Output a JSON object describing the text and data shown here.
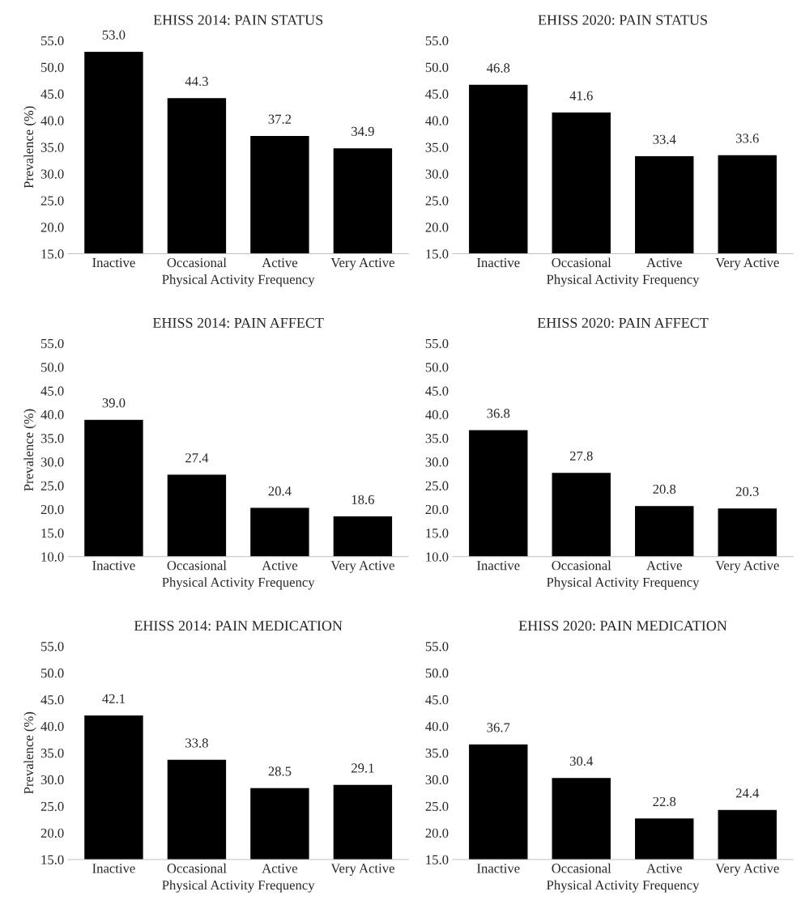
{
  "chart_data": [
    {
      "type": "bar",
      "title": "EHISS 2014: PAIN STATUS",
      "xlabel": "Physical Activity Frequency",
      "ylabel": "Prevalence (%)",
      "categories": [
        "Inactive",
        "Occasional",
        "Active",
        "Very Active"
      ],
      "values": [
        53.0,
        44.3,
        37.2,
        34.9
      ],
      "color": "#000000",
      "ylim": [
        15,
        55
      ],
      "yticks": [
        {
          "value": 15,
          "label": "15.0"
        },
        {
          "value": 20,
          "label": "20.0"
        },
        {
          "value": 25,
          "label": "25.0"
        },
        {
          "value": 30,
          "label": "30.0"
        },
        {
          "value": 35,
          "label": "35.0"
        },
        {
          "value": 40,
          "label": "40.0"
        },
        {
          "value": 45,
          "label": "45.0"
        },
        {
          "value": 50,
          "label": "50.0"
        },
        {
          "value": 55,
          "label": "55.0"
        }
      ],
      "value_labels": [
        "53.0",
        "44.3",
        "37.2",
        "34.9"
      ],
      "grid": false
    },
    {
      "type": "bar",
      "title": "EHISS 2020: PAIN STATUS",
      "xlabel": "Physical Activity Frequency",
      "categories": [
        "Inactive",
        "Occasional",
        "Active",
        "Very Active"
      ],
      "values": [
        46.8,
        41.6,
        33.4,
        33.6
      ],
      "color": "#000000",
      "ylim": [
        15,
        55
      ],
      "yticks": [
        {
          "value": 15,
          "label": "15.0"
        },
        {
          "value": 20,
          "label": "20.0"
        },
        {
          "value": 25,
          "label": "25.0"
        },
        {
          "value": 30,
          "label": "30.0"
        },
        {
          "value": 35,
          "label": "35.0"
        },
        {
          "value": 40,
          "label": "40.0"
        },
        {
          "value": 45,
          "label": "45.0"
        },
        {
          "value": 50,
          "label": "50.0"
        },
        {
          "value": 55,
          "label": "55.0"
        }
      ],
      "value_labels": [
        "46.8",
        "41.6",
        "33.4",
        "33.6"
      ],
      "grid": false
    },
    {
      "type": "bar",
      "title": "EHISS 2014: PAIN AFFECT",
      "xlabel": "Physical Activity Frequency",
      "ylabel": "Prevalence (%)",
      "categories": [
        "Inactive",
        "Occasional",
        "Active",
        "Very Active"
      ],
      "values": [
        39.0,
        27.4,
        20.4,
        18.6
      ],
      "color": "#000000",
      "ylim": [
        10,
        55
      ],
      "yticks": [
        {
          "value": 10,
          "label": "10.0"
        },
        {
          "value": 15,
          "label": "15.0"
        },
        {
          "value": 20,
          "label": "20.0"
        },
        {
          "value": 25,
          "label": "25.0"
        },
        {
          "value": 30,
          "label": "30.0"
        },
        {
          "value": 35,
          "label": "35.0"
        },
        {
          "value": 40,
          "label": "40.0"
        },
        {
          "value": 45,
          "label": "45.0"
        },
        {
          "value": 50,
          "label": "50.0"
        },
        {
          "value": 55,
          "label": "55.0"
        }
      ],
      "value_labels": [
        "39.0",
        "27.4",
        "20.4",
        "18.6"
      ],
      "grid": false
    },
    {
      "type": "bar",
      "title": "EHISS 2020: PAIN AFFECT",
      "xlabel": "Physical Activity Frequency",
      "categories": [
        "Inactive",
        "Occasional",
        "Active",
        "Very Active"
      ],
      "values": [
        36.8,
        27.8,
        20.8,
        20.3
      ],
      "color": "#000000",
      "ylim": [
        10,
        55
      ],
      "yticks": [
        {
          "value": 10,
          "label": "10.0"
        },
        {
          "value": 15,
          "label": "15.0"
        },
        {
          "value": 20,
          "label": "20.0"
        },
        {
          "value": 25,
          "label": "25.0"
        },
        {
          "value": 30,
          "label": "30.0"
        },
        {
          "value": 35,
          "label": "35.0"
        },
        {
          "value": 40,
          "label": "40.0"
        },
        {
          "value": 45,
          "label": "45.0"
        },
        {
          "value": 50,
          "label": "50.0"
        },
        {
          "value": 55,
          "label": "55.0"
        }
      ],
      "value_labels": [
        "36.8",
        "27.8",
        "20.8",
        "20.3"
      ],
      "grid": false
    },
    {
      "type": "bar",
      "title": "EHISS 2014: PAIN MEDICATION",
      "xlabel": "Physical Activity Frequency",
      "ylabel": "Prevalence (%)",
      "categories": [
        "Inactive",
        "Occasional",
        "Active",
        "Very Active"
      ],
      "values": [
        42.1,
        33.8,
        28.5,
        29.1
      ],
      "color": "#000000",
      "ylim": [
        15,
        55
      ],
      "yticks": [
        {
          "value": 15,
          "label": "15.0"
        },
        {
          "value": 20,
          "label": "20.0"
        },
        {
          "value": 25,
          "label": "25.0"
        },
        {
          "value": 30,
          "label": "30.0"
        },
        {
          "value": 35,
          "label": "35.0"
        },
        {
          "value": 40,
          "label": "40.0"
        },
        {
          "value": 45,
          "label": "45.0"
        },
        {
          "value": 50,
          "label": "50.0"
        },
        {
          "value": 55,
          "label": "55.0"
        }
      ],
      "value_labels": [
        "42.1",
        "33.8",
        "28.5",
        "29.1"
      ],
      "grid": false
    },
    {
      "type": "bar",
      "title": "EHISS 2020: PAIN MEDICATION",
      "xlabel": "Physical Activity Frequency",
      "categories": [
        "Inactive",
        "Occasional",
        "Active",
        "Very Active"
      ],
      "values": [
        36.7,
        30.4,
        22.8,
        24.4
      ],
      "color": "#000000",
      "ylim": [
        15,
        55
      ],
      "yticks": [
        {
          "value": 15,
          "label": "15.0"
        },
        {
          "value": 20,
          "label": "20.0"
        },
        {
          "value": 25,
          "label": "25.0"
        },
        {
          "value": 30,
          "label": "30.0"
        },
        {
          "value": 35,
          "label": "35.0"
        },
        {
          "value": 40,
          "label": "40.0"
        },
        {
          "value": 45,
          "label": "45.0"
        },
        {
          "value": 50,
          "label": "50.0"
        },
        {
          "value": 55,
          "label": "55.0"
        }
      ],
      "value_labels": [
        "36.7",
        "30.4",
        "22.8",
        "24.4"
      ],
      "grid": false
    }
  ]
}
